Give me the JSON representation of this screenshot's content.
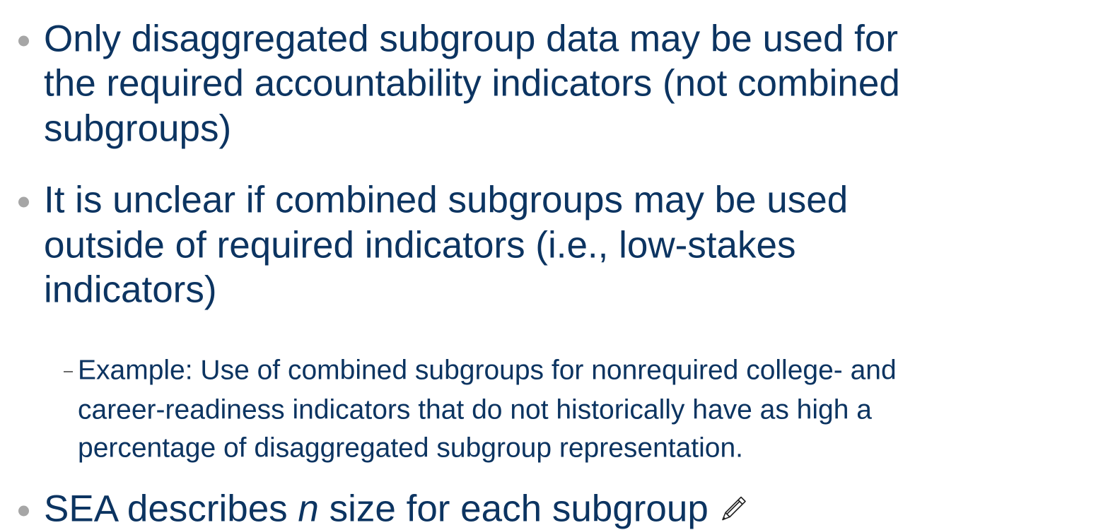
{
  "bullets": [
    {
      "lines": [
        "Only disaggregated subgroup data may be used for",
        "the required accountability indicators (not combined",
        "subgroups)"
      ]
    },
    {
      "lines": [
        "It is unclear if combined subgroups may be used",
        "outside of required indicators (i.e., low-stakes",
        "indicators)"
      ],
      "sub": [
        {
          "lines": [
            "Example: Use of combined subgroups for nonrequired college- and",
            "career-readiness indicators that do not historically have as high a",
            "percentage of disaggregated subgroup representation."
          ]
        }
      ]
    },
    {
      "parts": [
        "SEA describes ",
        "n",
        " size for each subgroup"
      ]
    }
  ]
}
